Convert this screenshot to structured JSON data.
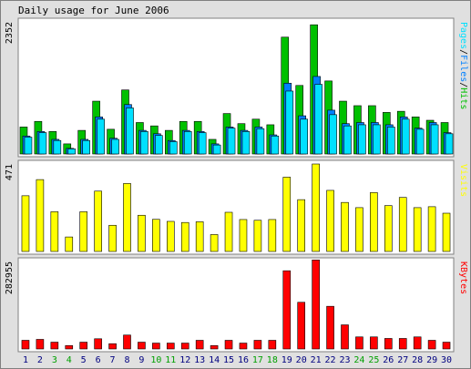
{
  "chart_data": {
    "type": "bar",
    "title": "Daily usage for June 2006",
    "days": [
      1,
      2,
      3,
      4,
      5,
      6,
      7,
      8,
      9,
      10,
      11,
      12,
      13,
      14,
      15,
      16,
      17,
      18,
      19,
      20,
      21,
      22,
      23,
      24,
      25,
      26,
      27,
      28,
      29,
      30
    ],
    "weekend_days": [
      3,
      4,
      10,
      11,
      17,
      18,
      24,
      25
    ],
    "colors": {
      "hits": "#00c000",
      "files": "#0080ff",
      "pages": "#00e0ff",
      "visits": "#ffff00",
      "kbytes": "#ff0000",
      "weekday_label": "#000080",
      "weekend_label": "#00a000",
      "frame": "#808080",
      "panel_bg": "#ffffff",
      "outer_bg": "#e0e0e0"
    },
    "panels": [
      {
        "id": "hits-panel",
        "max_label": "2352",
        "ylim": [
          0,
          2352
        ],
        "legend": [
          {
            "text": "Pages",
            "color": "#00e0ff"
          },
          {
            "text": "/",
            "color": "#000000"
          },
          {
            "text": "Files",
            "color": "#0080ff"
          },
          {
            "text": "/",
            "color": "#000000"
          },
          {
            "text": "Hits",
            "color": "#00c000"
          }
        ],
        "series": [
          {
            "name": "Hits",
            "color": "#00c000",
            "offset": 0,
            "values": [
              480,
              580,
              400,
              180,
              420,
              940,
              440,
              1140,
              560,
              500,
              420,
              580,
              580,
              260,
              720,
              540,
              620,
              520,
              2080,
              1220,
              2300,
              1300,
              940,
              860,
              860,
              740,
              760,
              660,
              600,
              560
            ]
          },
          {
            "name": "Files",
            "color": "#0080ff",
            "offset": 3,
            "values": [
              320,
              400,
              260,
              100,
              260,
              660,
              280,
              880,
              420,
              360,
              240,
              420,
              400,
              180,
              480,
              420,
              480,
              340,
              1260,
              680,
              1380,
              780,
              540,
              560,
              560,
              520,
              660,
              460,
              560,
              380
            ]
          },
          {
            "name": "Pages",
            "color": "#00e0ff",
            "offset": 5,
            "values": [
              300,
              380,
              240,
              90,
              240,
              620,
              260,
              820,
              400,
              330,
              220,
              400,
              380,
              160,
              460,
              400,
              450,
              320,
              1120,
              620,
              1240,
              700,
              500,
              520,
              520,
              480,
              620,
              440,
              520,
              360
            ]
          }
        ]
      },
      {
        "id": "visits-panel",
        "max_label": "471",
        "ylim": [
          0,
          471
        ],
        "legend": [
          {
            "text": "Visits",
            "color": "#ffff00"
          }
        ],
        "series": [
          {
            "name": "Visits",
            "color": "#ffff00",
            "offset": 0,
            "values": [
              300,
              387,
              214,
              78,
              214,
              325,
              141,
              366,
              195,
              173,
              162,
              156,
              160,
              91,
              211,
              172,
              168,
              172,
              400,
              279,
              471,
              329,
              264,
              236,
              317,
              247,
              291,
              236,
              241,
              206
            ]
          }
        ]
      },
      {
        "id": "kbytes-panel",
        "max_label": "282955",
        "ylim": [
          0,
          282955
        ],
        "legend": [
          {
            "text": "KBytes",
            "color": "#ff0000"
          }
        ],
        "series": [
          {
            "name": "KBytes",
            "color": "#ff0000",
            "offset": 0,
            "values": [
              28000,
              31000,
              22000,
              11000,
              22000,
              33000,
              17000,
              45000,
              22000,
              19000,
              19000,
              19000,
              28000,
              11000,
              28000,
              19000,
              28000,
              28000,
              253000,
              151000,
              288000,
              138000,
              78000,
              39000,
              39000,
              34000,
              34000,
              39000,
              28000,
              22000
            ]
          }
        ]
      }
    ]
  }
}
